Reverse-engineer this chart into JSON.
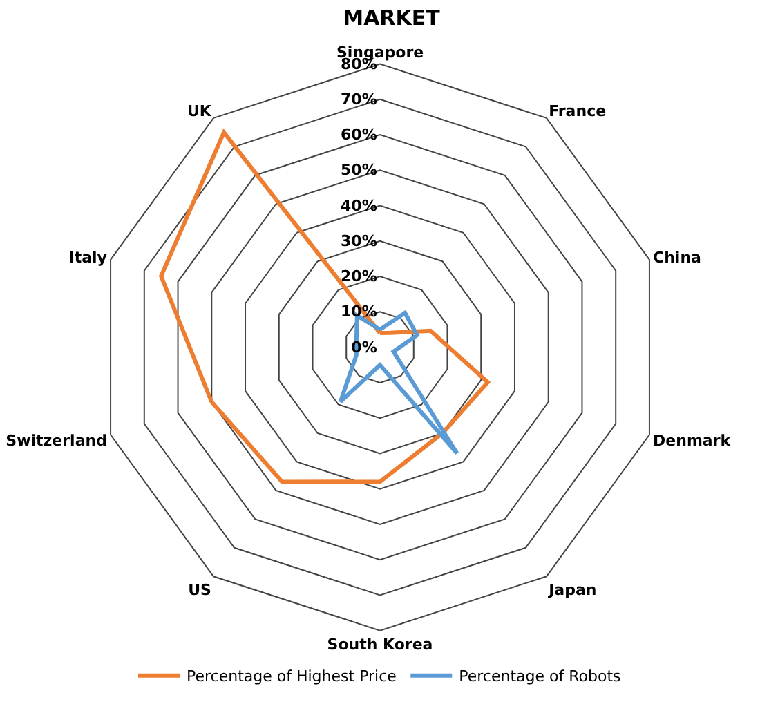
{
  "chart_data": {
    "type": "radar",
    "title": "MARKET",
    "categories": [
      "Singapore",
      "France",
      "China",
      "Denmark",
      "Japan",
      "South Korea",
      "US",
      "Switzerland",
      "Italy",
      "UK"
    ],
    "series": [
      {
        "name": "Percentage of Highest Price",
        "color": "#ed7d31",
        "values": [
          4,
          5,
          15,
          32,
          30,
          38,
          47,
          50,
          65,
          75
        ]
      },
      {
        "name": "Percentage of Robots",
        "color": "#5b9bd5",
        "values": [
          5,
          12,
          11,
          4,
          37,
          5,
          19,
          7,
          7,
          11
        ]
      }
    ],
    "ylim": [
      0,
      80
    ],
    "yticks": [
      {
        "value": 0,
        "label": "0%"
      },
      {
        "value": 10,
        "label": "10%"
      },
      {
        "value": 20,
        "label": "20%"
      },
      {
        "value": 30,
        "label": "30%"
      },
      {
        "value": 40,
        "label": "40%"
      },
      {
        "value": 50,
        "label": "50%"
      },
      {
        "value": 60,
        "label": "60%"
      },
      {
        "value": 70,
        "label": "70%"
      },
      {
        "value": 80,
        "label": "80%"
      }
    ],
    "legend": "bottom",
    "marker": "none",
    "line_style": "solid"
  }
}
